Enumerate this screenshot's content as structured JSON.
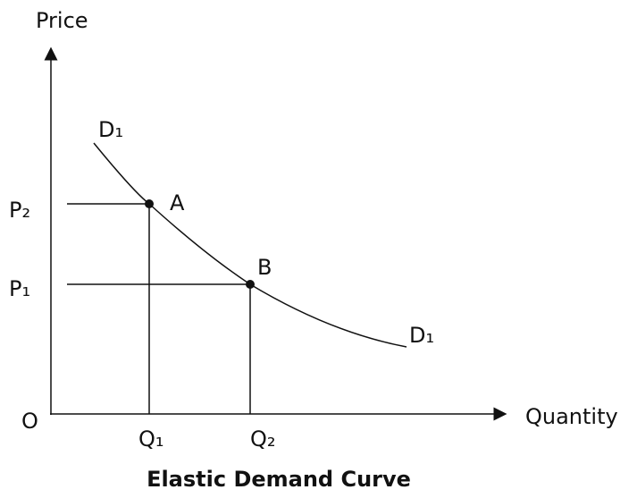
{
  "axes": {
    "y_label": "Price",
    "x_label": "Quantity",
    "origin": "O"
  },
  "curve": {
    "label_top": "D₁",
    "label_bottom": "D₁"
  },
  "points": [
    {
      "label": "A",
      "price": "P₂",
      "quantity": "Q₁"
    },
    {
      "label": "B",
      "price": "P₁",
      "quantity": "Q₂"
    }
  ],
  "caption": "Elastic Demand Curve"
}
